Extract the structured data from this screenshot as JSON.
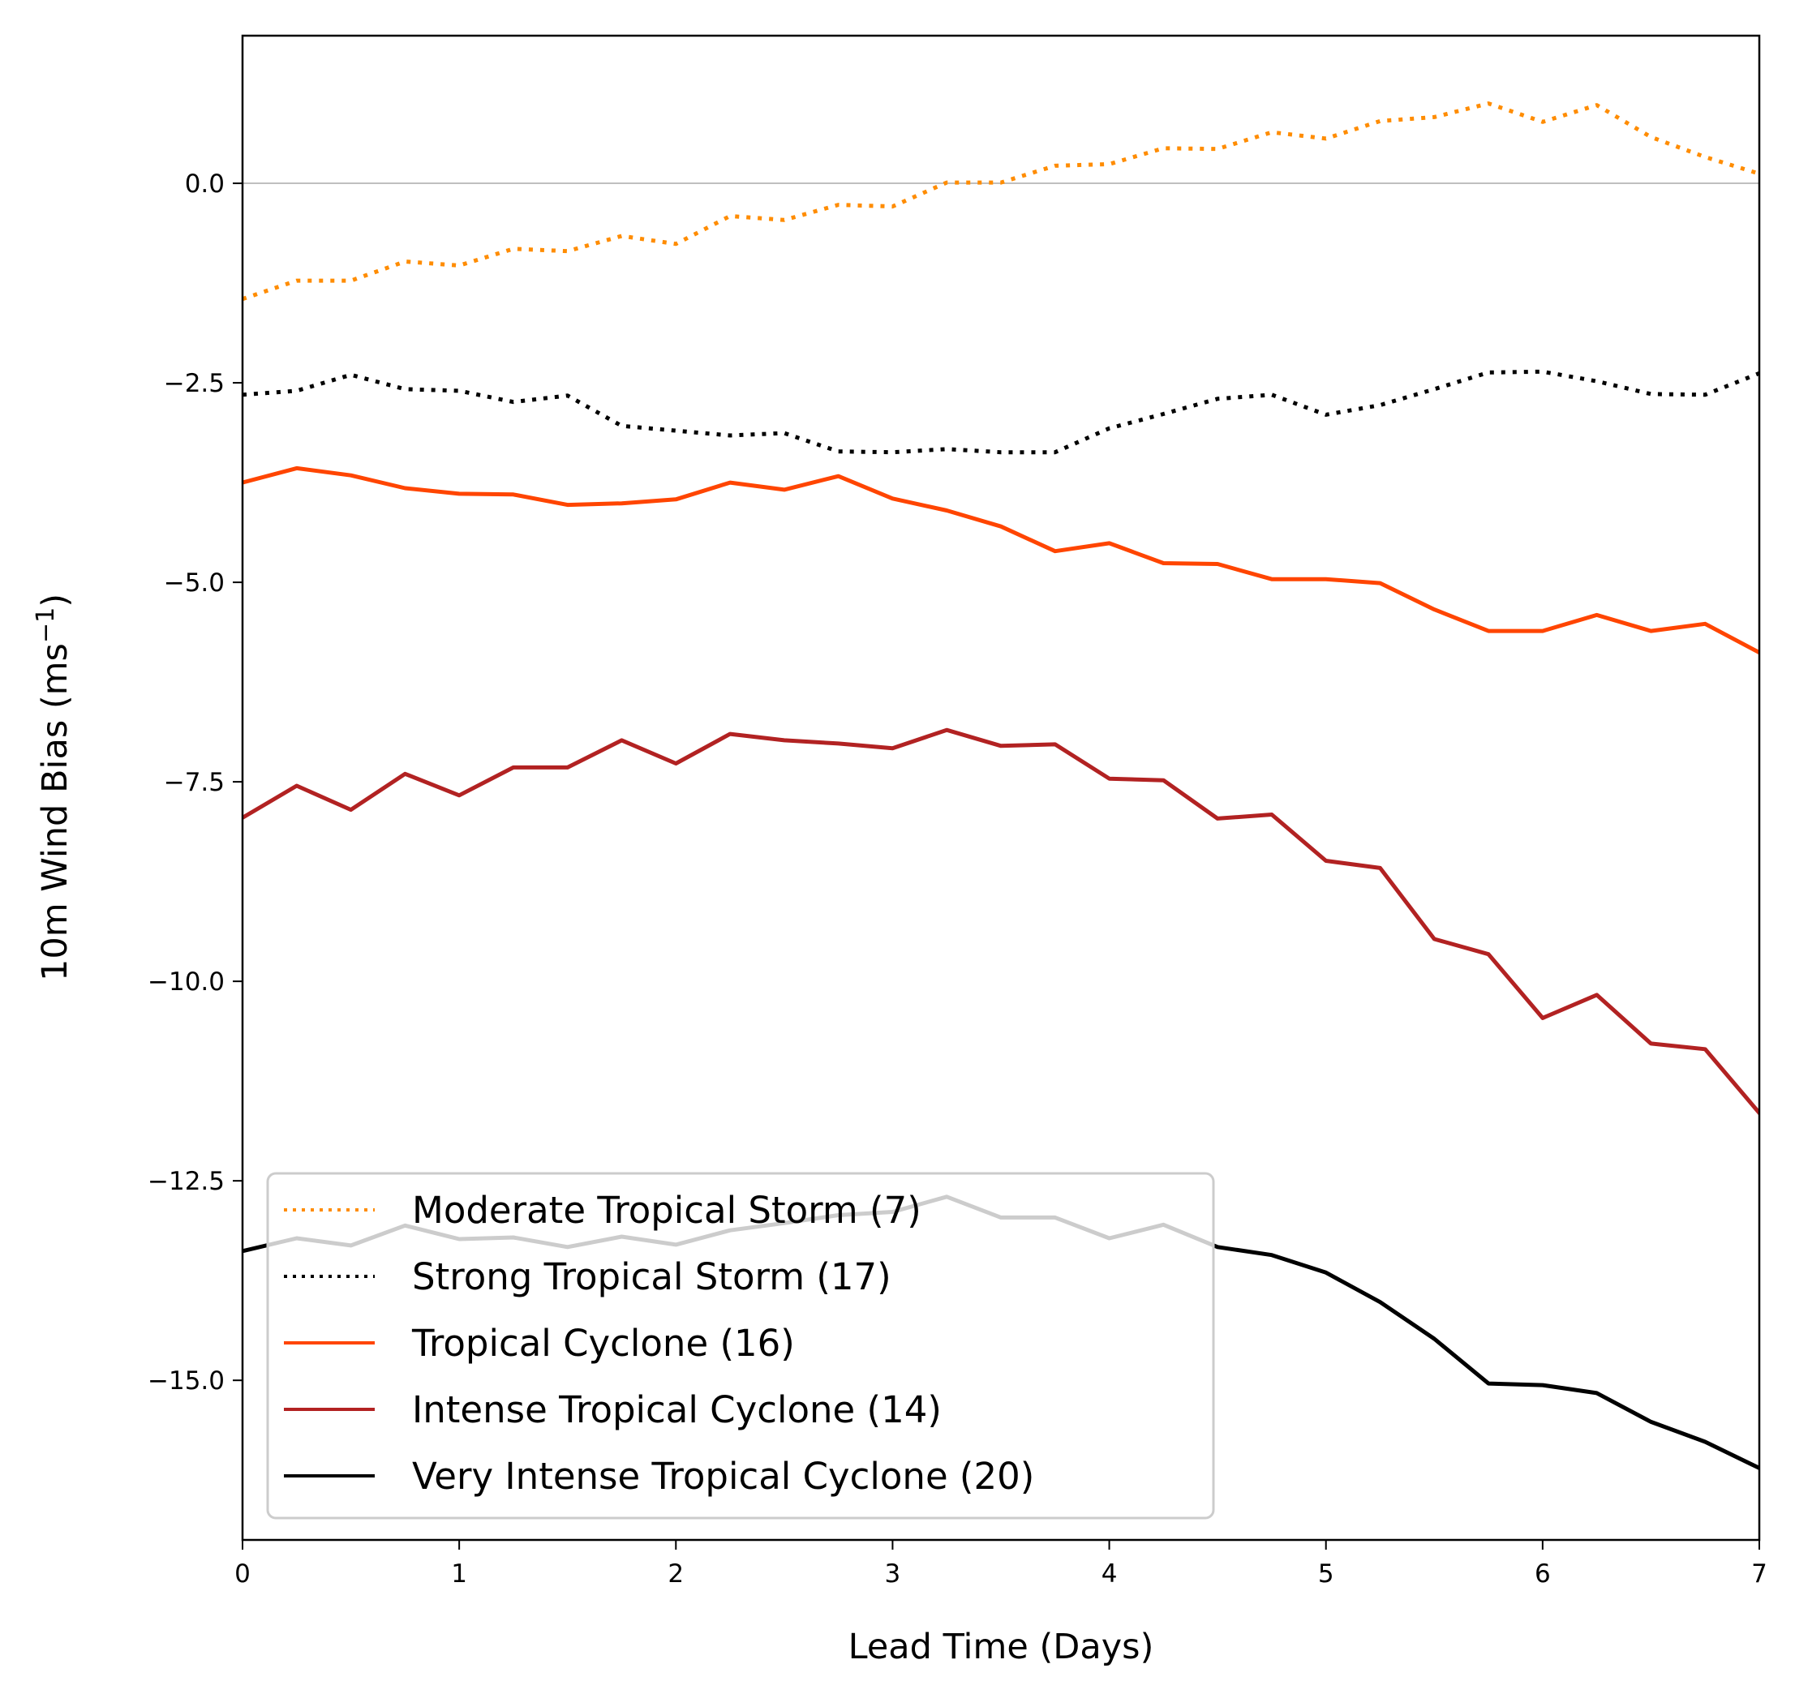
{
  "chart_data": {
    "type": "line",
    "xlabel": "Lead Time (Days)",
    "ylabel_main": "10m Wind Bias (ms",
    "ylabel_sup": "−1",
    "ylabel_close": ")",
    "xlim": [
      0,
      7
    ],
    "ylim": [
      -17.0,
      1.85
    ],
    "xticks": [
      0,
      1,
      2,
      3,
      4,
      5,
      6,
      7
    ],
    "xtick_labels": [
      "0",
      "1",
      "2",
      "3",
      "4",
      "5",
      "6",
      "7"
    ],
    "yticks": [
      0.0,
      -2.5,
      -5.0,
      -7.5,
      -10.0,
      -12.5,
      -15.0
    ],
    "ytick_labels": [
      "0.0",
      "−2.5",
      "−5.0",
      "−7.5",
      "−10.0",
      "−12.5",
      "−15.0"
    ],
    "zero_line": true,
    "legend_position": "lower-left",
    "x": [
      0,
      0.25,
      0.5,
      0.75,
      1,
      1.25,
      1.5,
      1.75,
      2,
      2.25,
      2.5,
      2.75,
      3,
      3.25,
      3.5,
      3.75,
      4,
      4.25,
      4.5,
      4.75,
      5,
      5.25,
      5.5,
      5.75,
      6,
      6.25,
      6.5,
      6.75,
      7
    ],
    "series": [
      {
        "name": "Moderate Tropical Storm (7)",
        "color": "#ff8c00",
        "style": "dotted",
        "values": [
          -1.45,
          -1.22,
          -1.22,
          -0.98,
          -1.03,
          -0.82,
          -0.85,
          -0.66,
          -0.76,
          -0.41,
          -0.46,
          -0.27,
          -0.29,
          0.01,
          0.01,
          0.22,
          0.24,
          0.44,
          0.43,
          0.64,
          0.56,
          0.78,
          0.83,
          1.0,
          0.77,
          0.98,
          0.58,
          0.33,
          0.12
        ]
      },
      {
        "name": "Strong Tropical Storm (17)",
        "color": "#000000",
        "style": "dotted",
        "values": [
          -2.65,
          -2.6,
          -2.4,
          -2.58,
          -2.6,
          -2.74,
          -2.66,
          -3.04,
          -3.1,
          -3.16,
          -3.13,
          -3.36,
          -3.37,
          -3.33,
          -3.37,
          -3.37,
          -3.07,
          -2.89,
          -2.7,
          -2.65,
          -2.9,
          -2.78,
          -2.58,
          -2.37,
          -2.36,
          -2.48,
          -2.64,
          -2.65,
          -2.38
        ]
      },
      {
        "name": "Tropical Cyclone (16)",
        "color": "#ff4500",
        "style": "solid",
        "values": [
          -3.75,
          -3.57,
          -3.66,
          -3.82,
          -3.89,
          -3.9,
          -4.03,
          -4.01,
          -3.96,
          -3.75,
          -3.84,
          -3.67,
          -3.95,
          -4.1,
          -4.3,
          -4.61,
          -4.51,
          -4.76,
          -4.77,
          -4.96,
          -4.96,
          -5.01,
          -5.34,
          -5.61,
          -5.61,
          -5.41,
          -5.61,
          -5.52,
          -5.88
        ]
      },
      {
        "name": "Intense Tropical Cyclone (14)",
        "color": "#b22222",
        "style": "solid",
        "values": [
          -7.95,
          -7.55,
          -7.85,
          -7.4,
          -7.67,
          -7.32,
          -7.32,
          -6.98,
          -7.27,
          -6.9,
          -6.98,
          -7.02,
          -7.08,
          -6.85,
          -7.05,
          -7.03,
          -7.46,
          -7.48,
          -7.96,
          -7.91,
          -8.49,
          -8.58,
          -9.47,
          -9.66,
          -10.46,
          -10.17,
          -10.78,
          -10.85,
          -11.65
        ]
      },
      {
        "name": "Very Intense Tropical Cyclone (20)",
        "color": "#000000",
        "style": "solid",
        "values": [
          -13.38,
          -13.22,
          -13.31,
          -13.06,
          -13.23,
          -13.21,
          -13.33,
          -13.2,
          -13.3,
          -13.12,
          -13.03,
          -12.93,
          -12.89,
          -12.7,
          -12.96,
          -12.96,
          -13.22,
          -13.05,
          -13.33,
          -13.43,
          -13.65,
          -14.02,
          -14.48,
          -15.04,
          -15.06,
          -15.16,
          -15.52,
          -15.77,
          -16.1
        ]
      }
    ]
  }
}
